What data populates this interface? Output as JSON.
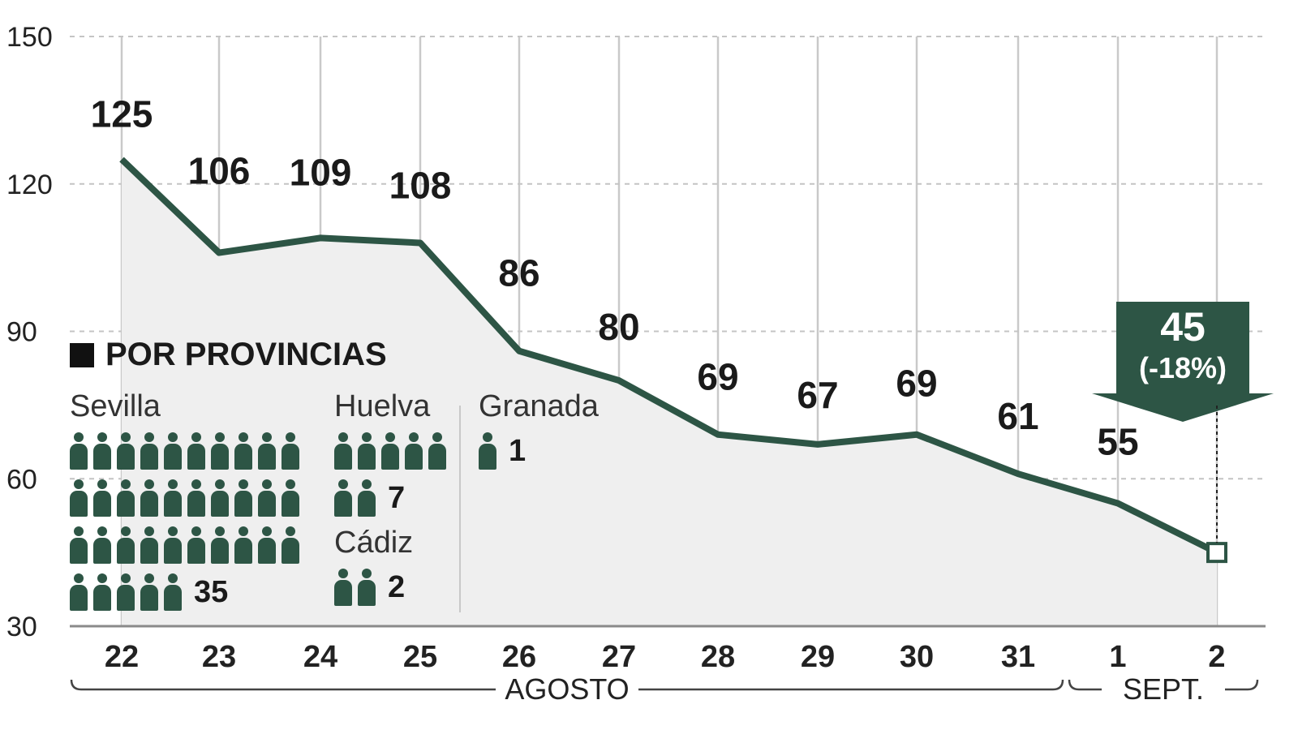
{
  "chart_data": {
    "type": "area",
    "categories": [
      "22",
      "23",
      "24",
      "25",
      "26",
      "27",
      "28",
      "29",
      "30",
      "31",
      "1",
      "2"
    ],
    "values": [
      125,
      106,
      109,
      108,
      86,
      80,
      69,
      67,
      69,
      61,
      55,
      45
    ],
    "y_ticks": [
      "150",
      "120",
      "90",
      "60",
      "30"
    ],
    "ylim": [
      30,
      150
    ],
    "gridlines": "dashed horizontal, solid vertical",
    "months": [
      {
        "label": "AGOSTO",
        "from": "22",
        "to": "31"
      },
      {
        "label": "SEPT.",
        "from": "1",
        "to": "2"
      }
    ],
    "callout": {
      "value": "45",
      "change": "(-18%)"
    },
    "line_color": "#2d5545",
    "area_color": "#efefef"
  },
  "provinces": {
    "title": "POR PROVINCIAS",
    "items": [
      {
        "name": "Sevilla",
        "count": 35
      },
      {
        "name": "Huelva",
        "count": 7
      },
      {
        "name": "Cádiz",
        "count": 2
      },
      {
        "name": "Granada",
        "count": 1
      }
    ]
  }
}
